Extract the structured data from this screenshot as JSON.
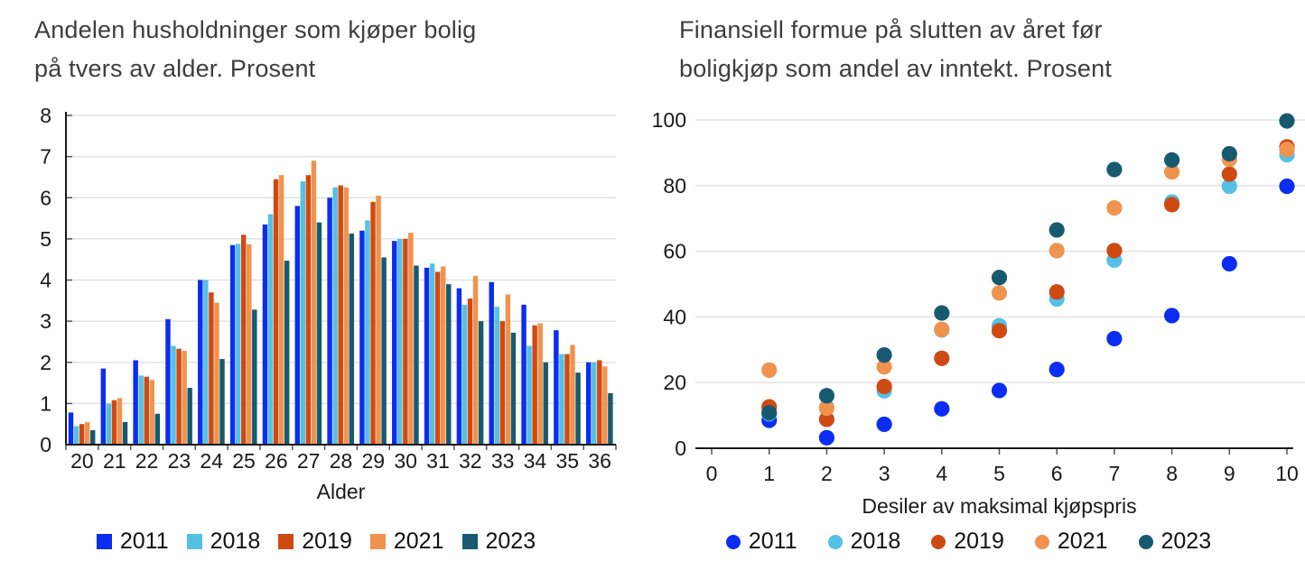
{
  "page": {
    "background": "#ffffff",
    "text_color": "#3d3d3d"
  },
  "colors": {
    "grid": "#e2e2e2",
    "axis": "#1a1a1a",
    "tick_label": "#1a1a1a"
  },
  "chart_data": [
    {
      "type": "bar",
      "title": "Andelen husholdninger som kjøper bolig på tvers av alder. Prosent",
      "title_line1": "Andelen husholdninger som kjøper bolig",
      "title_line2": "på tvers av alder. Prosent",
      "xlabel": "Alder",
      "ylabel": "",
      "ylim": [
        0,
        8
      ],
      "yticks": [
        0,
        1,
        2,
        3,
        4,
        5,
        6,
        7,
        8
      ],
      "grid": true,
      "legend_position": "bottom",
      "categories": [
        20,
        21,
        22,
        23,
        24,
        25,
        26,
        27,
        28,
        29,
        30,
        31,
        32,
        33,
        34,
        35,
        36
      ],
      "series": [
        {
          "name": "2011",
          "color": "#0b2df2",
          "values": [
            0.78,
            1.85,
            2.05,
            3.05,
            4.0,
            4.85,
            5.35,
            5.8,
            6.0,
            5.2,
            4.95,
            4.3,
            3.8,
            3.95,
            3.4,
            2.78,
            2.0
          ]
        },
        {
          "name": "2018",
          "color": "#54c0e4",
          "values": [
            0.45,
            1.0,
            1.68,
            2.4,
            4.0,
            4.88,
            5.6,
            6.4,
            6.25,
            5.45,
            5.0,
            4.4,
            3.4,
            3.35,
            2.4,
            2.2,
            2.0
          ]
        },
        {
          "name": "2019",
          "color": "#cf4a13",
          "values": [
            0.5,
            1.08,
            1.65,
            2.33,
            3.7,
            5.1,
            6.45,
            6.55,
            6.3,
            5.9,
            5.0,
            4.2,
            3.55,
            3.0,
            2.9,
            2.2,
            2.05
          ]
        },
        {
          "name": "2021",
          "color": "#f0934e",
          "values": [
            0.55,
            1.13,
            1.57,
            2.28,
            3.45,
            4.87,
            6.55,
            6.9,
            6.25,
            6.05,
            5.15,
            4.33,
            4.1,
            3.65,
            2.95,
            2.42,
            1.9
          ]
        },
        {
          "name": "2023",
          "color": "#175a70",
          "values": [
            0.35,
            0.55,
            0.75,
            1.38,
            2.08,
            3.28,
            4.47,
            5.4,
            5.13,
            4.55,
            4.35,
            3.9,
            3.0,
            2.72,
            2.0,
            1.75,
            1.25
          ]
        }
      ]
    },
    {
      "type": "scatter",
      "title": "Finansiell formue på slutten av året før boligkjøp som andel av inntekt. Prosent",
      "title_line1": "Finansiell formue på slutten av året før",
      "title_line2": "boligkjøp som andel av inntekt. Prosent",
      "xlabel": "Desiler av maksimal kjøpspris",
      "ylabel": "",
      "ylim": [
        0,
        100
      ],
      "yticks": [
        0,
        20,
        40,
        60,
        80,
        100
      ],
      "xlim": [
        0,
        10
      ],
      "xticks": [
        0,
        1,
        2,
        3,
        4,
        5,
        6,
        7,
        8,
        9,
        10
      ],
      "grid": true,
      "legend_position": "bottom",
      "x": [
        1,
        2,
        3,
        4,
        5,
        6,
        7,
        8,
        9,
        10
      ],
      "series": [
        {
          "name": "2011",
          "color": "#0b2df2",
          "values": [
            8.5,
            3.2,
            7.3,
            12.0,
            17.6,
            24.0,
            33.4,
            40.4,
            56.2,
            79.8
          ]
        },
        {
          "name": "2018",
          "color": "#54c0e4",
          "values": [
            10.5,
            12.5,
            17.5,
            36.0,
            37.3,
            45.5,
            57.3,
            75.0,
            79.8,
            89.4
          ]
        },
        {
          "name": "2019",
          "color": "#cf4a13",
          "values": [
            12.6,
            8.8,
            18.8,
            27.4,
            35.8,
            47.6,
            60.2,
            74.2,
            83.5,
            91.8
          ]
        },
        {
          "name": "2021",
          "color": "#f0934e",
          "values": [
            23.8,
            12.2,
            24.8,
            36.2,
            47.3,
            60.2,
            73.2,
            84.2,
            88.0,
            91.0
          ]
        },
        {
          "name": "2023",
          "color": "#175a70",
          "values": [
            10.8,
            16.0,
            28.4,
            41.2,
            52.0,
            66.5,
            84.9,
            87.8,
            89.7,
            99.7
          ]
        }
      ]
    }
  ]
}
